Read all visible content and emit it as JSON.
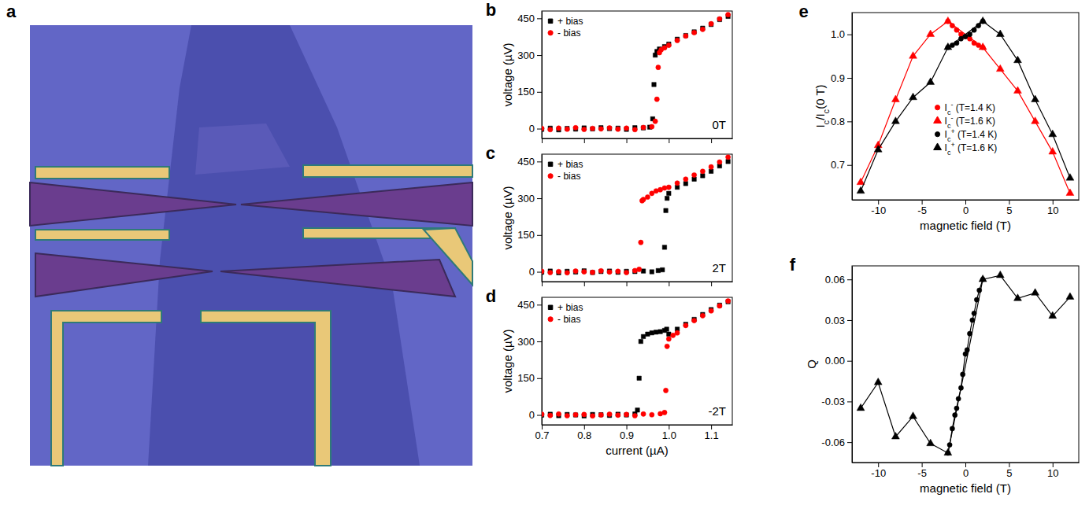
{
  "chart_data": [
    {
      "type": "image",
      "panel_label": "a"
    },
    {
      "type": "scatter",
      "panel_label": "b",
      "annotation": "0T",
      "y_label": "voltage (µV)",
      "xlim": [
        0.7,
        1.15
      ],
      "xticks": [
        0.7,
        0.8,
        0.9,
        {
          "value": 1,
          "label": "1.0"
        },
        1.1
      ],
      "ylim": [
        -40,
        480
      ],
      "yticks": [
        0,
        150,
        300,
        450
      ],
      "tick_labels": "y",
      "legend": "upper left",
      "series": [
        {
          "name": "+ bias",
          "color": "#000000",
          "marker": "square",
          "x": [
            0.7,
            0.72,
            0.74,
            0.76,
            0.78,
            0.8,
            0.82,
            0.84,
            0.86,
            0.88,
            0.9,
            0.92,
            0.94,
            0.955,
            0.962,
            0.965,
            0.968,
            0.972,
            0.978,
            0.99,
            1.0,
            1.02,
            1.04,
            1.06,
            1.08,
            1.1,
            1.12,
            1.14
          ],
          "values": [
            -3,
            2,
            -5,
            1,
            -2,
            3,
            -1,
            4,
            0,
            2,
            -3,
            4,
            3,
            6,
            40,
            180,
            300,
            315,
            325,
            335,
            345,
            365,
            380,
            395,
            410,
            425,
            445,
            458
          ]
        },
        {
          "name": "- bias",
          "color": "#ff0000",
          "marker": "circle",
          "x": [
            0.7,
            0.72,
            0.74,
            0.76,
            0.78,
            0.8,
            0.82,
            0.84,
            0.86,
            0.88,
            0.9,
            0.92,
            0.94,
            0.96,
            0.968,
            0.972,
            0.975,
            0.978,
            0.982,
            0.99,
            1.0,
            1.02,
            1.04,
            1.06,
            1.08,
            1.1,
            1.12,
            1.14
          ],
          "values": [
            1,
            -4,
            2,
            -2,
            4,
            -3,
            1,
            -1,
            3,
            -2,
            2,
            -4,
            5,
            8,
            30,
            120,
            250,
            310,
            322,
            330,
            340,
            360,
            378,
            392,
            405,
            428,
            448,
            465
          ]
        }
      ]
    },
    {
      "type": "scatter",
      "panel_label": "c",
      "annotation": "2T",
      "y_label": "voltage (µV)",
      "xlim": [
        0.7,
        1.15
      ],
      "xticks": [
        0.7,
        0.8,
        0.9,
        {
          "value": 1,
          "label": "1.0"
        },
        1.1
      ],
      "ylim": [
        -40,
        480
      ],
      "yticks": [
        0,
        150,
        300,
        450
      ],
      "tick_labels": "y",
      "legend": "upper left",
      "series": [
        {
          "name": "+ bias",
          "color": "#000000",
          "marker": "square",
          "x": [
            0.7,
            0.72,
            0.74,
            0.76,
            0.78,
            0.8,
            0.82,
            0.84,
            0.86,
            0.88,
            0.9,
            0.92,
            0.94,
            0.96,
            0.975,
            0.985,
            0.99,
            0.993,
            0.996,
            1.0,
            1.02,
            1.04,
            1.06,
            1.08,
            1.1,
            1.12,
            1.14
          ],
          "values": [
            -2,
            3,
            -4,
            2,
            -1,
            4,
            -3,
            1,
            3,
            -2,
            2,
            1,
            3,
            0,
            5,
            8,
            100,
            250,
            300,
            320,
            345,
            360,
            378,
            392,
            410,
            432,
            450
          ]
        },
        {
          "name": "- bias",
          "color": "#ff0000",
          "marker": "circle",
          "x": [
            0.7,
            0.72,
            0.74,
            0.76,
            0.78,
            0.8,
            0.82,
            0.84,
            0.86,
            0.88,
            0.9,
            0.92,
            0.93,
            0.934,
            0.937,
            0.94,
            0.95,
            0.96,
            0.97,
            0.98,
            0.99,
            1.0,
            1.02,
            1.04,
            1.06,
            1.08,
            1.1,
            1.12,
            1.14
          ],
          "values": [
            2,
            -3,
            1,
            -4,
            3,
            0,
            -2,
            4,
            -1,
            2,
            -3,
            5,
            10,
            120,
            290,
            295,
            305,
            320,
            330,
            335,
            342,
            345,
            362,
            378,
            395,
            410,
            428,
            448,
            468
          ]
        }
      ]
    },
    {
      "type": "scatter",
      "panel_label": "d",
      "annotation": "-2T",
      "x_label": "current (µA)",
      "y_label": "voltage (µV)",
      "xlim": [
        0.7,
        1.15
      ],
      "xticks": [
        0.7,
        0.8,
        0.9,
        {
          "value": 1,
          "label": "1.0"
        },
        1.1
      ],
      "ylim": [
        -40,
        480
      ],
      "yticks": [
        0,
        150,
        300,
        450
      ],
      "legend": "upper left",
      "series": [
        {
          "name": "+ bias",
          "color": "#000000",
          "marker": "square",
          "x": [
            0.7,
            0.72,
            0.74,
            0.76,
            0.78,
            0.8,
            0.82,
            0.84,
            0.86,
            0.88,
            0.9,
            0.92,
            0.926,
            0.93,
            0.934,
            0.94,
            0.95,
            0.96,
            0.97,
            0.98,
            0.99,
            0.995,
            1.0,
            1.02,
            1.04,
            1.06,
            1.08,
            1.1,
            1.12,
            1.14
          ],
          "values": [
            -1,
            3,
            -3,
            2,
            0,
            -4,
            2,
            1,
            -2,
            3,
            0,
            4,
            20,
            150,
            300,
            320,
            330,
            335,
            338,
            340,
            345,
            350,
            330,
            350,
            370,
            390,
            410,
            430,
            448,
            462
          ]
        },
        {
          "name": "- bias",
          "color": "#ff0000",
          "marker": "circle",
          "x": [
            0.7,
            0.72,
            0.74,
            0.76,
            0.78,
            0.8,
            0.82,
            0.84,
            0.86,
            0.88,
            0.9,
            0.92,
            0.94,
            0.96,
            0.98,
            0.99,
            0.993,
            0.996,
            1.0,
            1.01,
            1.02,
            1.04,
            1.06,
            1.08,
            1.1,
            1.12,
            1.14
          ],
          "values": [
            3,
            -2,
            4,
            -3,
            1,
            2,
            -4,
            0,
            3,
            -1,
            2,
            -3,
            4,
            1,
            5,
            10,
            100,
            280,
            310,
            325,
            335,
            365,
            385,
            405,
            425,
            445,
            465
          ]
        }
      ]
    },
    {
      "type": "line",
      "panel_label": "e",
      "x_label": "magnetic field (T)",
      "y_label": "Ic/Ic(0 T)",
      "xlim": [
        -13,
        13
      ],
      "xticks": [
        -10,
        -5,
        0,
        5,
        10
      ],
      "ylim": [
        0.62,
        1.05
      ],
      "yticks": [
        0.7,
        0.8,
        0.9,
        {
          "value": 1,
          "label": "1.0"
        }
      ],
      "legend": "center",
      "series": [
        {
          "name": "Ic- (T=1.4 K)",
          "color": "#ff0000",
          "marker": "circle",
          "line_style": "solid",
          "x": [
            -2,
            -1.5,
            -1,
            -0.5,
            0,
            0.5,
            1,
            1.5,
            2
          ],
          "values": [
            1.03,
            1.02,
            1.01,
            1.0,
            0.995,
            0.99,
            0.98,
            0.975,
            0.97
          ]
        },
        {
          "name": "Ic- (T=1.6 K)",
          "color": "#ff0000",
          "marker": "triangle",
          "line_style": "solid",
          "x": [
            -12,
            -10,
            -8,
            -6,
            -4,
            -2,
            2,
            4,
            6,
            8,
            10,
            12
          ],
          "values": [
            0.66,
            0.745,
            0.85,
            0.95,
            1.0,
            1.03,
            0.97,
            0.92,
            0.87,
            0.8,
            0.73,
            0.635
          ]
        },
        {
          "name": "Ic+ (T=1.4 K)",
          "color": "#000000",
          "marker": "circle",
          "line_style": "solid",
          "x": [
            -2,
            -1.5,
            -1,
            -0.5,
            0,
            0.5,
            1,
            1.5,
            2
          ],
          "values": [
            0.97,
            0.975,
            0.98,
            0.99,
            0.995,
            1.0,
            1.01,
            1.02,
            1.03
          ]
        },
        {
          "name": "Ic+ (T=1.6 K)",
          "color": "#000000",
          "marker": "triangle",
          "line_style": "solid",
          "x": [
            -12,
            -10,
            -8,
            -6,
            -4,
            -2,
            2,
            4,
            6,
            8,
            10,
            12
          ],
          "values": [
            0.64,
            0.735,
            0.8,
            0.855,
            0.89,
            0.97,
            1.03,
            1.0,
            0.94,
            0.85,
            0.77,
            0.67
          ]
        }
      ]
    },
    {
      "type": "line",
      "panel_label": "f",
      "x_label": "magnetic field (T)",
      "y_label": "Q",
      "xlim": [
        -13,
        13
      ],
      "xticks": [
        -10,
        -5,
        0,
        5,
        10
      ],
      "ylim": [
        -0.075,
        0.07
      ],
      "yticks": [
        -0.06,
        -0.03,
        {
          "value": 0,
          "label": "0.00"
        },
        0.03,
        0.06
      ],
      "series": [
        {
          "color": "#000000",
          "marker": "triangle",
          "line_style": "solid",
          "x": [
            -12,
            -10,
            -8,
            -6,
            -4,
            -2,
            2,
            4,
            6,
            8,
            10,
            12
          ],
          "values": [
            -0.035,
            -0.016,
            -0.056,
            -0.041,
            -0.061,
            -0.068,
            0.06,
            0.063,
            0.046,
            0.05,
            0.033,
            0.047
          ]
        },
        {
          "color": "#000000",
          "marker": "circle",
          "line_style": "solid",
          "x": [
            -2,
            -1.8,
            -1.5,
            -1.2,
            -1,
            -0.8,
            -0.5,
            -0.3,
            0,
            0.2,
            0.5,
            0.8,
            1,
            1.3,
            1.6,
            2
          ],
          "values": [
            -0.068,
            -0.062,
            -0.05,
            -0.04,
            -0.035,
            -0.028,
            -0.02,
            -0.01,
            0.005,
            0.008,
            0.02,
            0.03,
            0.035,
            0.045,
            0.052,
            0.06
          ]
        }
      ]
    }
  ]
}
